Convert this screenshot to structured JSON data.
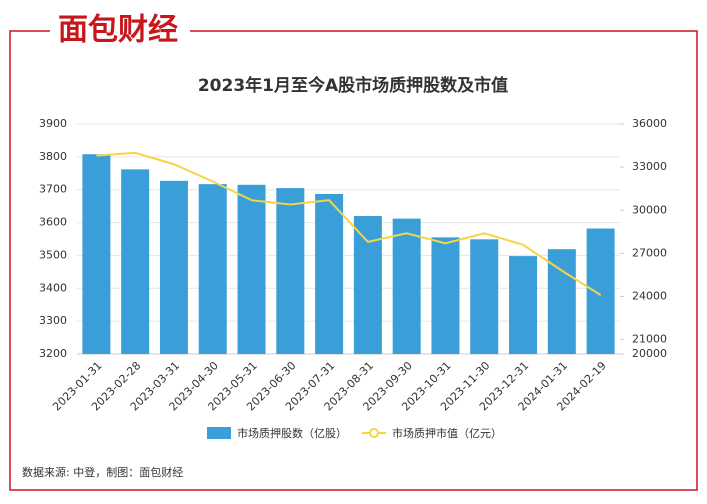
{
  "logo": "面包财经",
  "chart_data": {
    "type": "bar",
    "title": "2023年1月至今A股市场质押股数及市值",
    "categories": [
      "2023-01-31",
      "2023-02-28",
      "2023-03-31",
      "2023-04-30",
      "2023-05-31",
      "2023-06-30",
      "2023-07-31",
      "2023-08-31",
      "2023-09-30",
      "2023-10-31",
      "2023-11-30",
      "2023-12-31",
      "2024-01-31",
      "2024-02-19"
    ],
    "series": [
      {
        "name": "市场质押股数（亿股）",
        "type": "bar",
        "color": "#3a9fd9",
        "values": [
          3808,
          3762,
          3727,
          3717,
          3715,
          3705,
          3687,
          3620,
          3612,
          3555,
          3549,
          3498,
          3519,
          3582
        ]
      },
      {
        "name": "市场质押市值（亿元）",
        "type": "line",
        "axis": "y2",
        "color": "#f5d547",
        "values": [
          33800,
          34000,
          33200,
          32000,
          30700,
          30400,
          30700,
          27800,
          28400,
          27700,
          28400,
          27600,
          25800,
          24100
        ]
      }
    ],
    "ylim": [
      3200,
      3900
    ],
    "yticks": [
      3200,
      3300,
      3400,
      3500,
      3600,
      3700,
      3800,
      3900
    ],
    "y2lim": [
      20000,
      36000
    ],
    "y2ticks": [
      20000,
      21000,
      24000,
      27000,
      30000,
      33000,
      36000
    ],
    "grid": true
  },
  "source": "数据来源: 中登，制图：面包财经"
}
